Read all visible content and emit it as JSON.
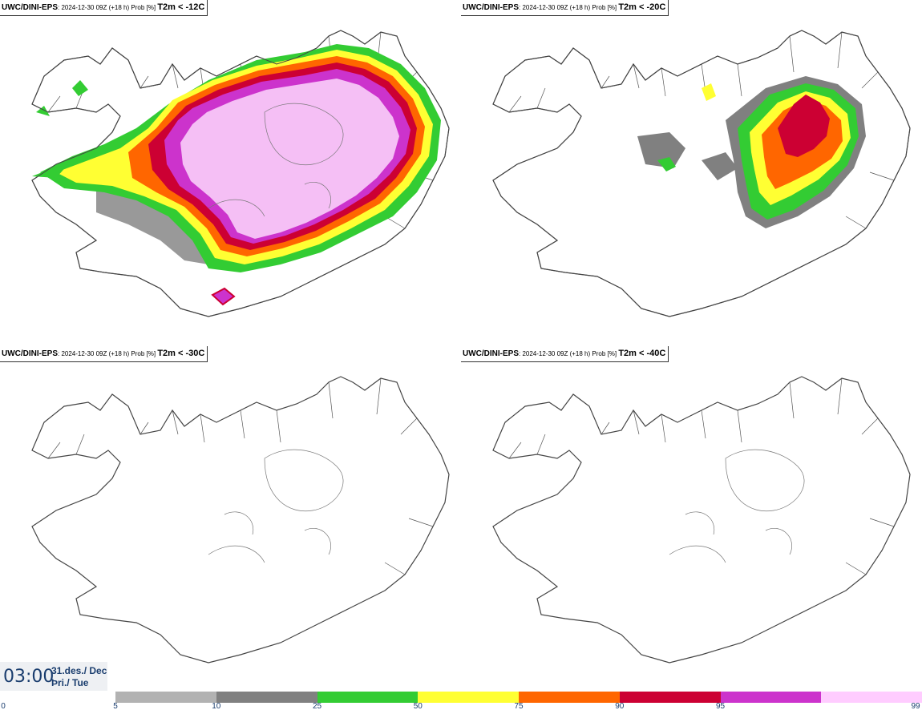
{
  "panels": [
    {
      "model": "UWC/DINI-EPS",
      "info": ": 2024-12-30 09Z (+18 h) Prob [%]",
      "cond": "T2m < -12C"
    },
    {
      "model": "UWC/DINI-EPS",
      "info": ": 2024-12-30 09Z (+18 h) Prob [%]",
      "cond": "T2m < -20C"
    },
    {
      "model": "UWC/DINI-EPS",
      "info": ": 2024-12-30 09Z (+18 h) Prob [%]",
      "cond": "T2m < -30C"
    },
    {
      "model": "UWC/DINI-EPS",
      "info": ": 2024-12-30 09Z (+18 h) Prob [%]",
      "cond": "T2m < -40C"
    }
  ],
  "time": {
    "clock": "03:00",
    "date_line1": "31.des./ Dec",
    "date_line2": "Þri./ Tue"
  },
  "legend": {
    "ticks": [
      "0",
      "5",
      "10",
      "25",
      "50",
      "75",
      "90",
      "95",
      "99"
    ],
    "colors": [
      "#b2b2b2",
      "#808080",
      "#33cc33",
      "#ffff33",
      "#ff6600",
      "#cc0033",
      "#cc33cc",
      "#ffccff"
    ]
  },
  "colors": {
    "outline": "#444444",
    "shade_light": "#b2b2b2",
    "shade_dark": "#808080",
    "green": "#33cc33",
    "yellow": "#ffff33",
    "orange": "#ff6600",
    "red": "#cc0033",
    "magenta": "#cc33cc",
    "pink": "#f5bff5"
  }
}
